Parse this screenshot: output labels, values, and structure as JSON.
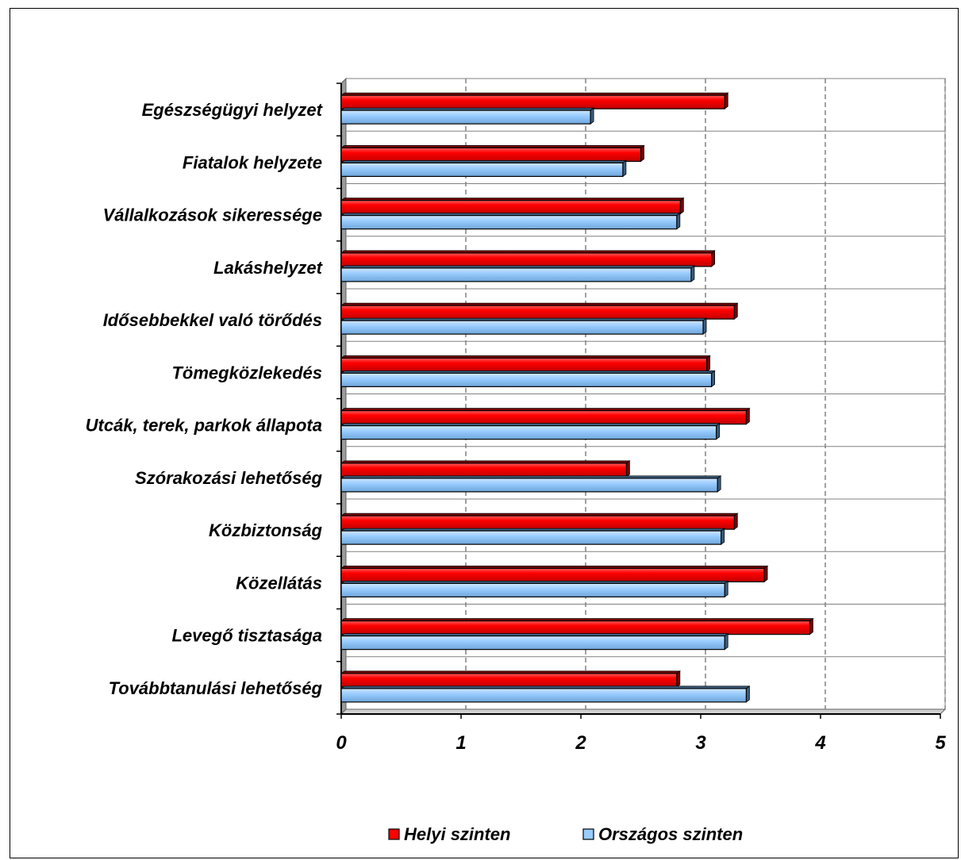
{
  "chart_data": {
    "type": "bar",
    "orientation": "horizontal",
    "categories": [
      "Egészségügyi helyzet",
      "Fiatalok helyzete",
      "Vállalkozások sikeressége",
      "Lakáshelyzet",
      "Idősebbekkel való törődés",
      "Tömegközlekedés",
      "Utcák, terek, parkok állapota",
      "Szórakozási lehetőség",
      "Közbiztonság",
      "Közellátás",
      "Levegő tisztasága",
      "Továbbtanulási lehetőség"
    ],
    "series": [
      {
        "name": "Helyi szinten",
        "color": "#ff0000",
        "values": [
          3.2,
          2.5,
          2.83,
          3.09,
          3.28,
          3.05,
          3.38,
          2.38,
          3.28,
          3.53,
          3.91,
          2.8
        ]
      },
      {
        "name": "Országos szinten",
        "color": "#99ccff",
        "values": [
          2.08,
          2.35,
          2.8,
          2.92,
          3.02,
          3.09,
          3.13,
          3.14,
          3.17,
          3.2,
          3.2,
          3.38
        ]
      }
    ],
    "xlim": [
      0,
      5
    ],
    "xticks": [
      "0",
      "1",
      "2",
      "3",
      "4",
      "5"
    ],
    "grid": "vertical dashed",
    "legend": "bottom"
  }
}
